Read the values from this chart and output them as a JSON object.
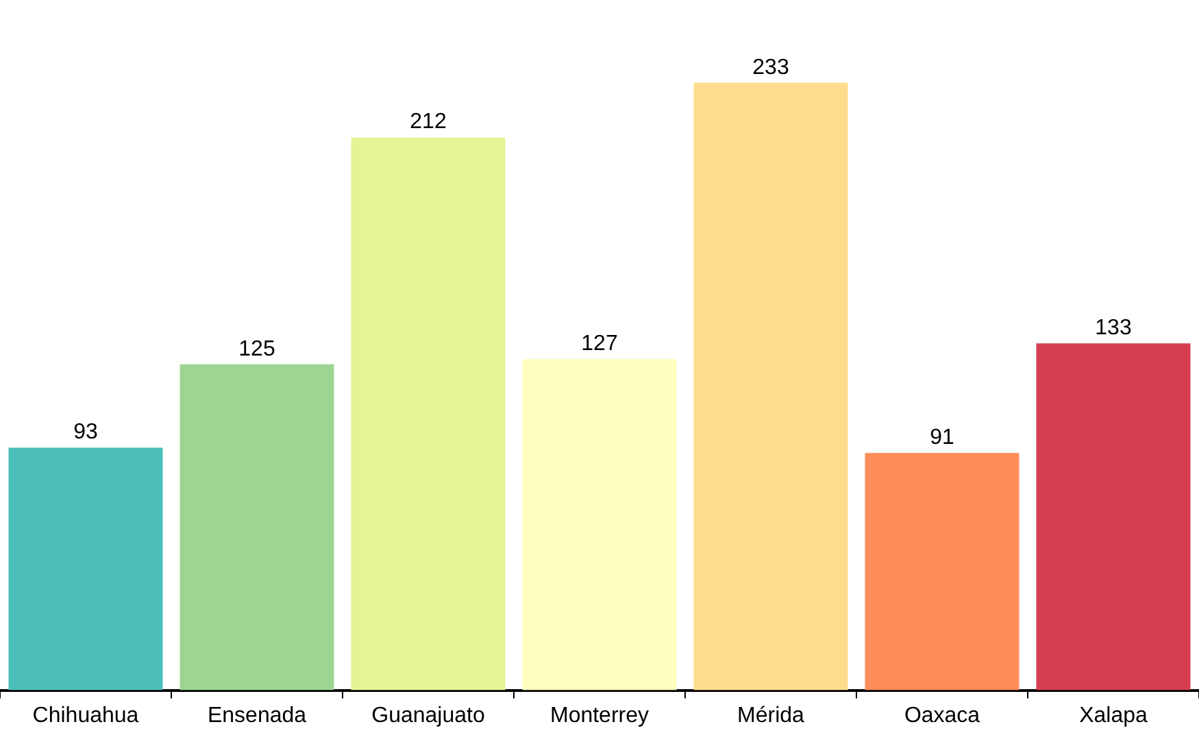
{
  "chart_data": {
    "type": "bar",
    "categories": [
      "Chihuahua",
      "Ensenada",
      "Guanajuato",
      "Monterrey",
      "Mérida",
      "Oaxaca",
      "Xalapa"
    ],
    "values": [
      93,
      125,
      212,
      127,
      233,
      91,
      133
    ],
    "colors": [
      "#4bbfb8",
      "#9dd593",
      "#e5f495",
      "#feffbe",
      "#fddd8d",
      "#fd8d5a",
      "#d53e50"
    ],
    "data_labels": true,
    "grid": false,
    "legend": false
  }
}
